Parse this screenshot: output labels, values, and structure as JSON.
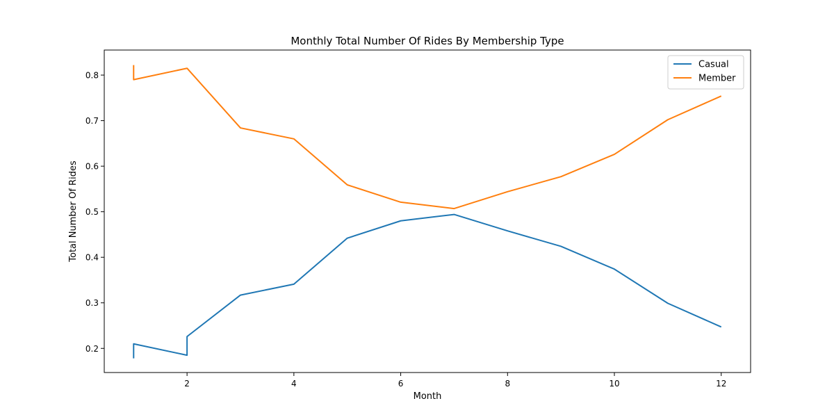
{
  "chart_data": {
    "type": "line",
    "title": "Monthly Total Number Of Rides By Membership Type",
    "xlabel": "Month",
    "ylabel": "Total Number Of Rides",
    "xlim": [
      0.45,
      12.55
    ],
    "ylim": [
      0.147,
      0.855
    ],
    "xticks": [
      2,
      4,
      6,
      8,
      10,
      12
    ],
    "yticks": [
      0.2,
      0.3,
      0.4,
      0.5,
      0.6,
      0.7,
      0.8
    ],
    "grid": false,
    "legend_position": "top-right",
    "series": [
      {
        "name": "Casual",
        "color": "#1f77b4",
        "x": [
          1,
          1,
          2,
          2,
          3,
          4,
          5,
          6,
          7,
          8,
          9,
          10,
          11,
          12
        ],
        "y": [
          0.178,
          0.21,
          0.185,
          0.226,
          0.317,
          0.341,
          0.442,
          0.48,
          0.494,
          0.458,
          0.424,
          0.374,
          0.299,
          0.247
        ]
      },
      {
        "name": "Member",
        "color": "#ff7f0e",
        "x": [
          1,
          1,
          2,
          2,
          3,
          4,
          5,
          6,
          7,
          8,
          9,
          10,
          11,
          12
        ],
        "y": [
          0.822,
          0.79,
          0.815,
          0.815,
          0.684,
          0.66,
          0.559,
          0.521,
          0.507,
          0.544,
          0.577,
          0.626,
          0.702,
          0.754
        ]
      }
    ]
  }
}
